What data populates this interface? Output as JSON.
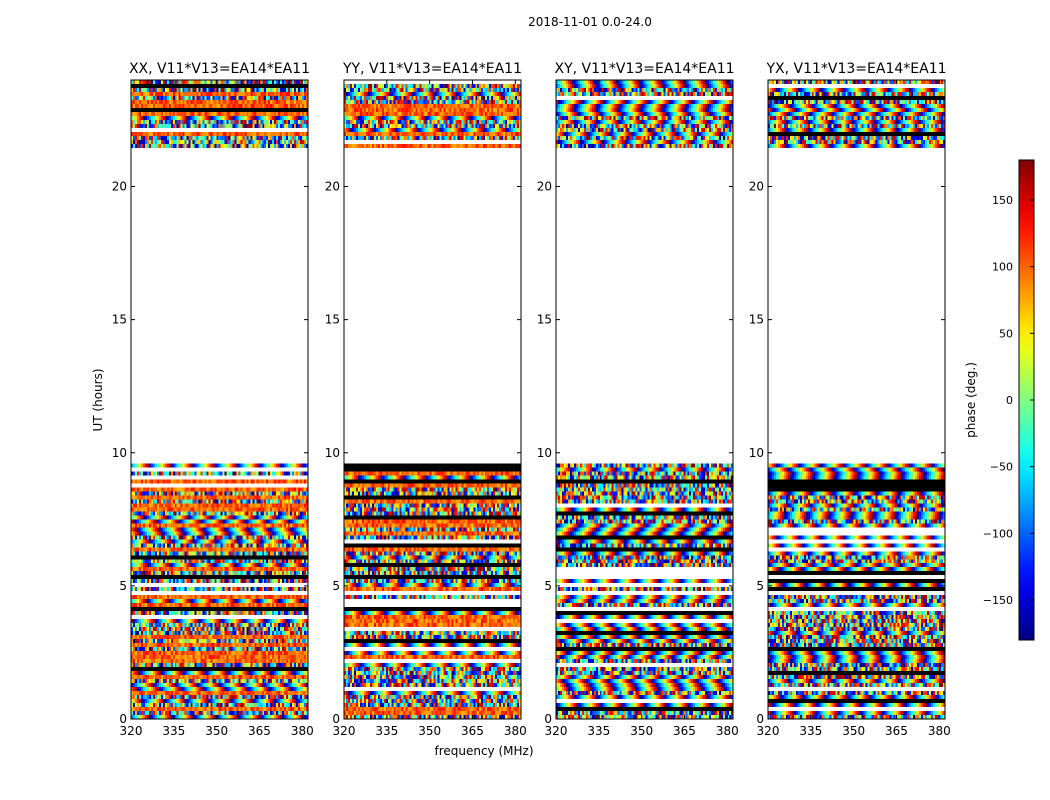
{
  "figure": {
    "suptitle": "2018-11-01 0.0-24.0"
  },
  "chart_data": {
    "type": "heatmap",
    "title": "2018-11-01 0.0-24.0",
    "xlabel": "frequency (MHz)",
    "ylabel": "UT (hours)",
    "xlim": [
      320,
      382
    ],
    "ylim": [
      0,
      24
    ],
    "x_ticks": [
      320,
      335,
      350,
      365,
      380
    ],
    "y_ticks": [
      0,
      5,
      10,
      15,
      20
    ],
    "panels": [
      {
        "title": "XX, V11*V13=EA14*EA11",
        "polarization": "XX"
      },
      {
        "title": "YY, V11*V13=EA14*EA11",
        "polarization": "YY"
      },
      {
        "title": "XY, V11*V13=EA14*EA11",
        "polarization": "XY"
      },
      {
        "title": "YX, V11*V13=EA14*EA11",
        "polarization": "YX"
      }
    ],
    "data_coverage_hours": [
      [
        0.0,
        9.6
      ],
      [
        21.4,
        24.0
      ]
    ],
    "colorbar": {
      "label": "phase (deg.)",
      "range": [
        -180,
        180
      ],
      "ticks": [
        -150,
        -100,
        -50,
        0,
        50,
        100,
        150
      ],
      "colormap": "jet"
    }
  }
}
